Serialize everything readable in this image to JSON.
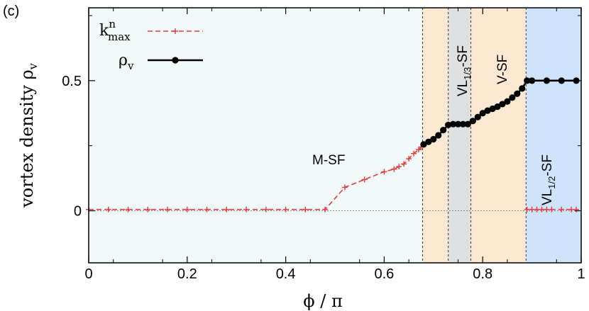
{
  "panel_label": "(c)",
  "chart_data": {
    "type": "line",
    "xlabel": "ϕ / π",
    "ylabel": "vortex density ρ",
    "ylabel_sub": "v",
    "xlim": [
      0,
      1
    ],
    "ylim": [
      -0.2,
      0.78
    ],
    "xticks": [
      "0",
      "0.2",
      "0.4",
      "0.6",
      "0.8",
      "1"
    ],
    "yticks": [
      "0",
      "0.5"
    ],
    "background_color": "#f1f9f9",
    "regions": [
      {
        "x0": 0.678,
        "x1": 0.73,
        "color": "#fde9d2"
      },
      {
        "x0": 0.73,
        "x1": 0.776,
        "color": "#dfe0e2"
      },
      {
        "x0": 0.776,
        "x1": 0.888,
        "color": "#fde9d2"
      },
      {
        "x0": 0.888,
        "x1": 1.0,
        "color": "#cfe4fb"
      }
    ],
    "annotations": {
      "msf": "M-SF",
      "vl13_main": "VL",
      "vl13_sub": "1/3",
      "vl13_tail": "-SF",
      "vsf": "V-SF",
      "vl12_main": "VL",
      "vl12_sub": "1/2",
      "vl12_tail": "-SF"
    },
    "legend": [
      {
        "symbol": "k",
        "sup": "n",
        "sub": "max",
        "color": "#e8383a",
        "style": "dashed-plus"
      },
      {
        "symbol": "ρ",
        "sub": "v",
        "color": "#000000",
        "style": "solid-dot"
      }
    ],
    "series": [
      {
        "color": "#e8383a",
        "points": [
          [
            0.0,
            0.005
          ],
          [
            0.04,
            0.005
          ],
          [
            0.08,
            0.005
          ],
          [
            0.12,
            0.005
          ],
          [
            0.16,
            0.005
          ],
          [
            0.2,
            0.005
          ],
          [
            0.24,
            0.005
          ],
          [
            0.28,
            0.005
          ],
          [
            0.32,
            0.005
          ],
          [
            0.36,
            0.005
          ],
          [
            0.4,
            0.005
          ],
          [
            0.44,
            0.005
          ],
          [
            0.48,
            0.005
          ],
          [
            0.52,
            0.09
          ],
          [
            0.56,
            0.12
          ],
          [
            0.6,
            0.15
          ],
          [
            0.62,
            0.16
          ],
          [
            0.63,
            0.17
          ],
          [
            0.64,
            0.18
          ],
          [
            0.65,
            0.2
          ],
          [
            0.66,
            0.22
          ],
          [
            0.67,
            0.235
          ],
          [
            0.675,
            0.245
          ]
        ],
        "points_tail": [
          [
            0.89,
            0.005
          ],
          [
            0.9,
            0.005
          ],
          [
            0.91,
            0.005
          ],
          [
            0.92,
            0.005
          ],
          [
            0.93,
            0.005
          ],
          [
            0.94,
            0.005
          ],
          [
            0.96,
            0.005
          ],
          [
            0.98,
            0.005
          ],
          [
            0.99,
            0.005
          ]
        ]
      },
      {
        "color": "#000000",
        "points": [
          [
            0.68,
            0.255
          ],
          [
            0.69,
            0.265
          ],
          [
            0.7,
            0.275
          ],
          [
            0.71,
            0.29
          ],
          [
            0.72,
            0.31
          ],
          [
            0.73,
            0.33
          ],
          [
            0.74,
            0.333
          ],
          [
            0.75,
            0.333
          ],
          [
            0.76,
            0.333
          ],
          [
            0.77,
            0.333
          ],
          [
            0.78,
            0.345
          ],
          [
            0.79,
            0.36
          ],
          [
            0.8,
            0.375
          ],
          [
            0.81,
            0.385
          ],
          [
            0.82,
            0.392
          ],
          [
            0.83,
            0.4
          ],
          [
            0.84,
            0.41
          ],
          [
            0.85,
            0.42
          ],
          [
            0.86,
            0.435
          ],
          [
            0.87,
            0.45
          ],
          [
            0.88,
            0.47
          ],
          [
            0.89,
            0.5
          ],
          [
            0.9,
            0.5
          ],
          [
            0.93,
            0.5
          ],
          [
            0.96,
            0.5
          ],
          [
            0.99,
            0.5
          ]
        ]
      }
    ]
  }
}
